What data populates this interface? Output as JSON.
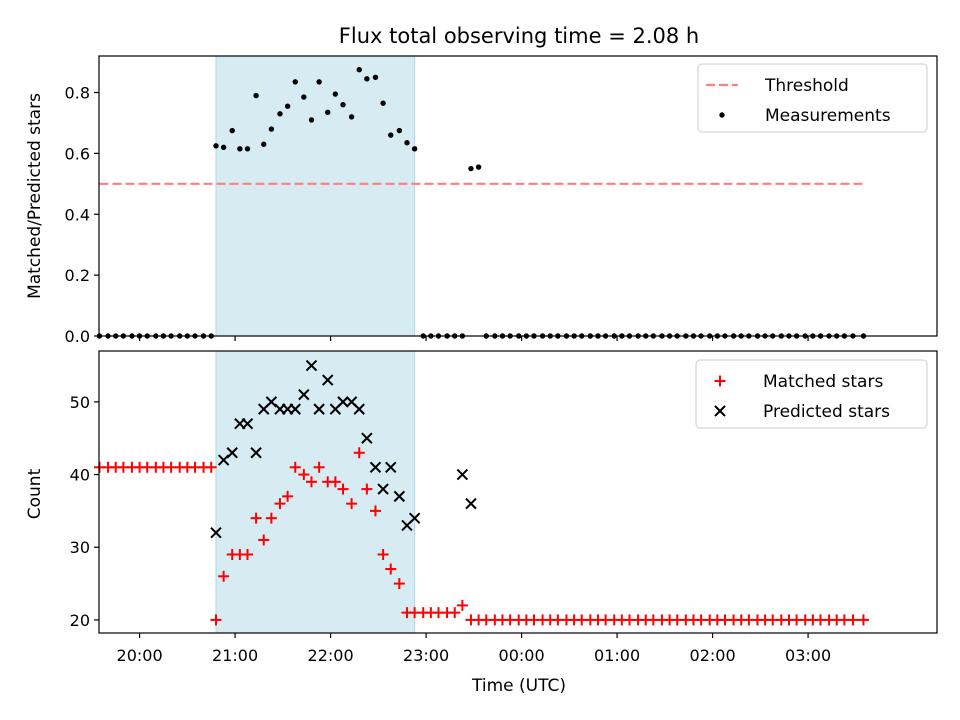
{
  "chart_data": [
    {
      "type": "scatter",
      "panel": "top",
      "title": "Flux total observing time = 2.08 h",
      "ylabel": "Matched/Predicted stars",
      "xlabel": "",
      "ylim": [
        0,
        0.92
      ],
      "yticks": [
        0.0,
        0.2,
        0.4,
        0.6,
        0.8
      ],
      "ytick_labels": [
        "0.0",
        "0.2",
        "0.4",
        "0.6",
        "0.8"
      ],
      "xlim": [
        -0.425,
        8.35
      ],
      "highlight_span": [
        0.8,
        2.88
      ],
      "highlight_color": "#add8e6",
      "legend_position": "upper right",
      "series": [
        {
          "name": "Threshold",
          "style": "dashed-line",
          "color": "#ff7f7f",
          "x": [
            -0.42,
            7.58
          ],
          "y": [
            0.5,
            0.5
          ]
        },
        {
          "name": "Measurements",
          "style": "dot",
          "color": "#000000",
          "x": [
            -0.42,
            -0.33,
            -0.25,
            -0.17,
            -0.08,
            0.0,
            0.08,
            0.17,
            0.25,
            0.33,
            0.42,
            0.5,
            0.58,
            0.67,
            0.75,
            0.8,
            0.88,
            0.97,
            1.05,
            1.13,
            1.22,
            1.3,
            1.38,
            1.47,
            1.55,
            1.63,
            1.72,
            1.8,
            1.88,
            1.97,
            2.05,
            2.13,
            2.22,
            2.3,
            2.38,
            2.47,
            2.55,
            2.63,
            2.72,
            2.8,
            2.88,
            2.97,
            3.05,
            3.13,
            3.22,
            3.3,
            3.38,
            3.47,
            3.55,
            3.63,
            3.72,
            3.8,
            3.88,
            3.97,
            4.05,
            4.13,
            4.22,
            4.3,
            4.38,
            4.47,
            4.55,
            4.63,
            4.72,
            4.8,
            4.88,
            4.97,
            5.05,
            5.13,
            5.22,
            5.3,
            5.38,
            5.47,
            5.55,
            5.63,
            5.72,
            5.8,
            5.88,
            5.97,
            6.05,
            6.13,
            6.22,
            6.3,
            6.38,
            6.47,
            6.55,
            6.63,
            6.72,
            6.8,
            6.88,
            6.97,
            7.05,
            7.13,
            7.22,
            7.3,
            7.38,
            7.47,
            7.58
          ],
          "y": [
            0,
            0,
            0,
            0,
            0,
            0,
            0,
            0,
            0,
            0,
            0,
            0,
            0,
            0,
            0,
            0.625,
            0.62,
            0.675,
            0.615,
            0.615,
            0.79,
            0.63,
            0.68,
            0.73,
            0.755,
            0.835,
            0.785,
            0.71,
            0.835,
            0.735,
            0.795,
            0.76,
            0.72,
            0.875,
            0.845,
            0.85,
            0.765,
            0.66,
            0.675,
            0.635,
            0.615,
            0,
            0,
            0,
            0,
            0,
            0,
            0.55,
            0.555,
            0,
            0,
            0,
            0,
            0,
            0,
            0,
            0,
            0,
            0,
            0,
            0,
            0,
            0,
            0,
            0,
            0,
            0,
            0,
            0,
            0,
            0,
            0,
            0,
            0,
            0,
            0,
            0,
            0,
            0,
            0,
            0,
            0,
            0,
            0,
            0,
            0,
            0,
            0,
            0,
            0,
            0,
            0,
            0,
            0,
            0,
            0,
            0
          ]
        }
      ]
    },
    {
      "type": "scatter",
      "panel": "bottom",
      "title": "",
      "ylabel": "Count",
      "xlabel": "Time (UTC)",
      "ylim": [
        18.2,
        57.0
      ],
      "yticks": [
        20,
        30,
        40,
        50
      ],
      "ytick_labels": [
        "20",
        "30",
        "40",
        "50"
      ],
      "xlim": [
        -0.425,
        8.35
      ],
      "xticks": [
        0,
        1,
        2,
        3,
        4,
        5,
        6,
        7
      ],
      "xtick_labels": [
        "20:00",
        "21:00",
        "22:00",
        "23:00",
        "00:00",
        "01:00",
        "02:00",
        "03:00"
      ],
      "highlight_span": [
        0.8,
        2.88
      ],
      "highlight_color": "#add8e6",
      "legend_position": "upper right",
      "series": [
        {
          "name": "Matched stars",
          "style": "plus",
          "color": "#ff0000",
          "x": [
            -0.42,
            -0.33,
            -0.25,
            -0.17,
            -0.08,
            0.0,
            0.08,
            0.17,
            0.25,
            0.33,
            0.42,
            0.5,
            0.58,
            0.67,
            0.75,
            0.8,
            0.88,
            0.97,
            1.05,
            1.13,
            1.22,
            1.3,
            1.38,
            1.47,
            1.55,
            1.63,
            1.72,
            1.8,
            1.88,
            1.97,
            2.05,
            2.13,
            2.22,
            2.3,
            2.38,
            2.47,
            2.55,
            2.63,
            2.72,
            2.8,
            2.88,
            2.97,
            3.05,
            3.13,
            3.22,
            3.3,
            3.38,
            3.47,
            3.55,
            3.63,
            3.72,
            3.8,
            3.88,
            3.97,
            4.05,
            4.13,
            4.22,
            4.3,
            4.38,
            4.47,
            4.55,
            4.63,
            4.72,
            4.8,
            4.88,
            4.97,
            5.05,
            5.13,
            5.22,
            5.3,
            5.38,
            5.47,
            5.55,
            5.63,
            5.72,
            5.8,
            5.88,
            5.97,
            6.05,
            6.13,
            6.22,
            6.3,
            6.38,
            6.47,
            6.55,
            6.63,
            6.72,
            6.8,
            6.88,
            6.97,
            7.05,
            7.13,
            7.22,
            7.3,
            7.38,
            7.47,
            7.58
          ],
          "y": [
            41,
            41,
            41,
            41,
            41,
            41,
            41,
            41,
            41,
            41,
            41,
            41,
            41,
            41,
            41,
            20,
            26,
            29,
            29,
            29,
            34,
            31,
            34,
            36,
            37,
            41,
            40,
            39,
            41,
            39,
            39,
            38,
            36,
            43,
            38,
            35,
            29,
            27,
            25,
            21,
            21,
            21,
            21,
            21,
            21,
            21,
            22,
            20,
            20,
            20,
            20,
            20,
            20,
            20,
            20,
            20,
            20,
            20,
            20,
            20,
            20,
            20,
            20,
            20,
            20,
            20,
            20,
            20,
            20,
            20,
            20,
            20,
            20,
            20,
            20,
            20,
            20,
            20,
            20,
            20,
            20,
            20,
            20,
            20,
            20,
            20,
            20,
            20,
            20,
            20,
            20,
            20,
            20,
            20,
            20,
            20,
            20
          ]
        },
        {
          "name": "Predicted stars",
          "style": "x",
          "color": "#000000",
          "x": [
            0.8,
            0.88,
            0.97,
            1.05,
            1.13,
            1.22,
            1.3,
            1.38,
            1.47,
            1.55,
            1.63,
            1.72,
            1.8,
            1.88,
            1.97,
            2.05,
            2.13,
            2.22,
            2.3,
            2.38,
            2.47,
            2.55,
            2.63,
            2.72,
            2.8,
            2.88,
            3.38,
            3.47
          ],
          "y": [
            32,
            42,
            43,
            47,
            47,
            43,
            49,
            50,
            49,
            49,
            49,
            51,
            55,
            49,
            53,
            49,
            50,
            50,
            49,
            45,
            41,
            38,
            41,
            37,
            33,
            34,
            40,
            36
          ]
        }
      ]
    }
  ]
}
